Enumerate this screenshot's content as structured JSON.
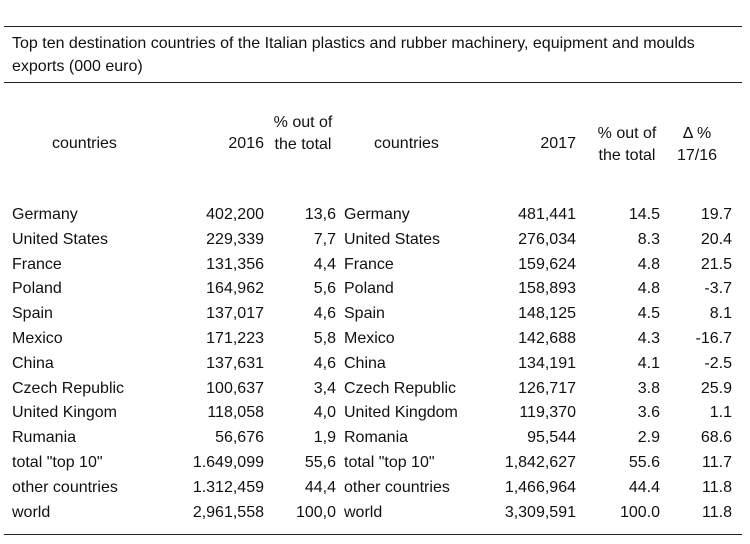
{
  "title": "Top ten destination countries of the Italian plastics and rubber machinery, equipment and moulds exports (000 euro)",
  "headers": {
    "countries_a": "countries",
    "y2016": "2016",
    "pct_a": "% out of the total",
    "countries_b": "countries",
    "y2017": "2017",
    "pct_b": "% out of the total",
    "delta": "Δ % 17/16"
  },
  "rows": [
    {
      "c1": "Germany",
      "c2": "402,200",
      "c3": "13,6",
      "c4": "Germany",
      "c5": "481,441",
      "c6": "14.5",
      "c7": "19.7"
    },
    {
      "c1": "United States",
      "c2": "229,339",
      "c3": "7,7",
      "c4": "United States",
      "c5": "276,034",
      "c6": "8.3",
      "c7": "20.4"
    },
    {
      "c1": "France",
      "c2": "131,356",
      "c3": "4,4",
      "c4": "France",
      "c5": "159,624",
      "c6": "4.8",
      "c7": "21.5"
    },
    {
      "c1": "Poland",
      "c2": "164,962",
      "c3": "5,6",
      "c4": "Poland",
      "c5": "158,893",
      "c6": "4.8",
      "c7": "-3.7"
    },
    {
      "c1": "Spain",
      "c2": "137,017",
      "c3": "4,6",
      "c4": "Spain",
      "c5": "148,125",
      "c6": "4.5",
      "c7": "8.1"
    },
    {
      "c1": "Mexico",
      "c2": "171,223",
      "c3": "5,8",
      "c4": "Mexico",
      "c5": "142,688",
      "c6": "4.3",
      "c7": "-16.7"
    },
    {
      "c1": "China",
      "c2": "137,631",
      "c3": "4,6",
      "c4": "China",
      "c5": "134,191",
      "c6": "4.1",
      "c7": "-2.5"
    },
    {
      "c1": "Czech Republic",
      "c2": "100,637",
      "c3": "3,4",
      "c4": "Czech Republic",
      "c5": "126,717",
      "c6": "3.8",
      "c7": "25.9"
    },
    {
      "c1": "United Kingom",
      "c2": "118,058",
      "c3": "4,0",
      "c4": "United Kingdom",
      "c5": "119,370",
      "c6": "3.6",
      "c7": "1.1"
    },
    {
      "c1": "Rumania",
      "c2": "56,676",
      "c3": "1,9",
      "c4": "Romania",
      "c5": "95,544",
      "c6": "2.9",
      "c7": "68.6"
    },
    {
      "c1": "total \"top 10\"",
      "c2": "1.649,099",
      "c3": "55,6",
      "c4": "total \"top 10\"",
      "c5": "1,842,627",
      "c6": "55.6",
      "c7": "11.7"
    },
    {
      "c1": "other countries",
      "c2": "1.312,459",
      "c3": "44,4",
      "c4": "other countries",
      "c5": "1,466,964",
      "c6": "44.4",
      "c7": "11.8"
    },
    {
      "c1": "world",
      "c2": "2,961,558",
      "c3": "100,0",
      "c4": "world",
      "c5": "3,309,591",
      "c6": "100.0",
      "c7": "11.8"
    }
  ]
}
